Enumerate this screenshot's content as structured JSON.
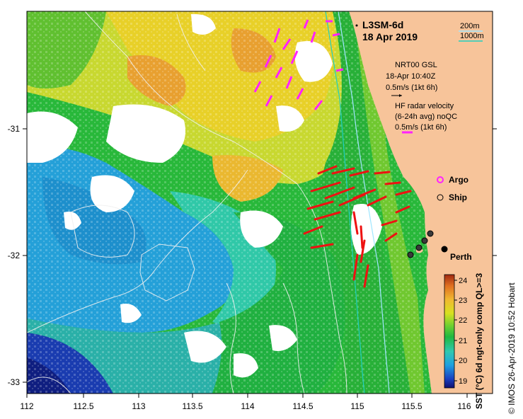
{
  "map": {
    "product_title": "L3SM-6d",
    "date": "18 Apr 2019",
    "isobath_labels": [
      "200m",
      "1000m"
    ],
    "wind_source": "NRT00 GSL",
    "wind_time": "18-Apr 10:40Z",
    "wind_scale": "0.5m/s (1kt 6h)",
    "radar_title": "HF radar velocity",
    "radar_avg": "(6-24h avg) noQC",
    "radar_scale": "0.5m/s (1kt 6h)",
    "legend": {
      "argo": "Argo",
      "ship": "Ship"
    },
    "city": "Perth",
    "x_ticks": [
      "112",
      "112.5",
      "113",
      "113.5",
      "114",
      "114.5",
      "115",
      "115.5",
      "116"
    ],
    "y_ticks": [
      "-31",
      "-32",
      "-33"
    ],
    "colorbar_ticks": [
      "24",
      "23",
      "22",
      "21",
      "20",
      "19"
    ],
    "colorbar_label": "SST (°C) 6d ngt-only comp QL>=3",
    "credit": "© IMOS 26-Apr-2019 10:52 Hobart",
    "colors": {
      "land": "#f7c49a",
      "no_data": "#ffffff",
      "hf_radar_arrow": "#ee1111",
      "argo": "#ff22ff",
      "isobath_200": "#a0e6ff",
      "isobath_1000": "#20d0c0"
    }
  }
}
